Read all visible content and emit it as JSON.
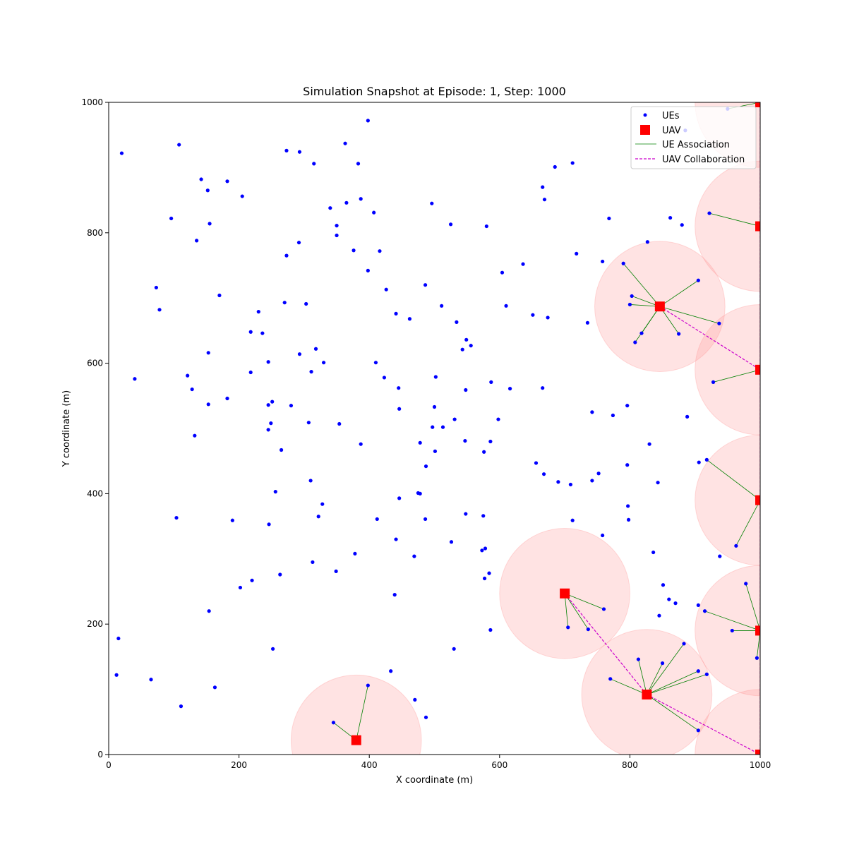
{
  "chart_data": {
    "type": "scatter",
    "title": "Simulation Snapshot at Episode: 1, Step: 1000",
    "xlabel": "X coordinate (m)",
    "ylabel": "Y coordinate (m)",
    "xlim": [
      0,
      1000
    ],
    "ylim": [
      0,
      1000
    ],
    "xticks": [
      0,
      200,
      400,
      600,
      800,
      1000
    ],
    "yticks": [
      0,
      200,
      400,
      600,
      800,
      1000
    ],
    "xtick_labels": [
      "0",
      "200",
      "400",
      "600",
      "800",
      "1000"
    ],
    "ytick_labels": [
      "0",
      "200",
      "400",
      "600",
      "800",
      "1000"
    ],
    "grid": false,
    "legend_position": "top-right",
    "legend": [
      {
        "label": "UEs",
        "marker": "point"
      },
      {
        "label": "UAV",
        "marker": "square"
      },
      {
        "label": "UE Association",
        "marker": "line"
      },
      {
        "label": "UAV Collaboration",
        "marker": "dashed-line"
      }
    ],
    "colors": {
      "ue": "#0000ff",
      "uav": "#ff0000",
      "association": "#008000",
      "collaboration": "#cc00cc",
      "coverage": "#ff9a9a"
    },
    "coverage_radius": 100,
    "uavs": [
      [
        380,
        22
      ],
      [
        700,
        247
      ],
      [
        826,
        92
      ],
      [
        846,
        687
      ],
      [
        1000,
        0
      ],
      [
        1000,
        190
      ],
      [
        1000,
        390
      ],
      [
        1000,
        590
      ],
      [
        1000,
        810
      ],
      [
        1000,
        1000
      ]
    ],
    "collaborations": [
      [
        1,
        2
      ],
      [
        2,
        4
      ],
      [
        3,
        7
      ],
      [
        4,
        5
      ],
      [
        5,
        6
      ],
      [
        6,
        7
      ],
      [
        7,
        8
      ],
      [
        8,
        9
      ]
    ],
    "associations": [
      {
        "uav": 0,
        "ues": [
          [
            345,
            49
          ],
          [
            398,
            106
          ]
        ]
      },
      {
        "uav": 1,
        "ues": [
          [
            705,
            195
          ],
          [
            736,
            192
          ],
          [
            760,
            223
          ]
        ]
      },
      {
        "uav": 2,
        "ues": [
          [
            770,
            116
          ],
          [
            813,
            146
          ],
          [
            850,
            140
          ],
          [
            883,
            170
          ],
          [
            905,
            128
          ],
          [
            918,
            123
          ],
          [
            905,
            37
          ]
        ]
      },
      {
        "uav": 3,
        "ues": [
          [
            790,
            753
          ],
          [
            803,
            703
          ],
          [
            800,
            690
          ],
          [
            808,
            632
          ],
          [
            818,
            646
          ],
          [
            875,
            645
          ],
          [
            905,
            727
          ],
          [
            937,
            661
          ]
        ]
      },
      {
        "uav": 5,
        "ues": [
          [
            978,
            262
          ],
          [
            915,
            220
          ],
          [
            957,
            190
          ],
          [
            995,
            148
          ]
        ]
      },
      {
        "uav": 6,
        "ues": [
          [
            918,
            452
          ],
          [
            963,
            320
          ]
        ]
      },
      {
        "uav": 7,
        "ues": [
          [
            928,
            571
          ]
        ]
      },
      {
        "uav": 8,
        "ues": [
          [
            922,
            830
          ]
        ]
      },
      {
        "uav": 9,
        "ues": [
          [
            950,
            990
          ]
        ]
      }
    ],
    "ues": [
      [
        20,
        922
      ],
      [
        108,
        935
      ],
      [
        142,
        882
      ],
      [
        152,
        865
      ],
      [
        182,
        879
      ],
      [
        205,
        856
      ],
      [
        96,
        822
      ],
      [
        135,
        788
      ],
      [
        155,
        814
      ],
      [
        273,
        926
      ],
      [
        293,
        924
      ],
      [
        315,
        906
      ],
      [
        363,
        937
      ],
      [
        383,
        906
      ],
      [
        398,
        972
      ],
      [
        340,
        838
      ],
      [
        365,
        846
      ],
      [
        387,
        852
      ],
      [
        407,
        831
      ],
      [
        350,
        811
      ],
      [
        350,
        796
      ],
      [
        292,
        785
      ],
      [
        273,
        765
      ],
      [
        376,
        773
      ],
      [
        416,
        772
      ],
      [
        398,
        742
      ],
      [
        73,
        716
      ],
      [
        78,
        682
      ],
      [
        170,
        704
      ],
      [
        270,
        693
      ],
      [
        303,
        691
      ],
      [
        230,
        679
      ],
      [
        218,
        648
      ],
      [
        236,
        646
      ],
      [
        153,
        616
      ],
      [
        293,
        614
      ],
      [
        318,
        622
      ],
      [
        330,
        601
      ],
      [
        245,
        602
      ],
      [
        218,
        586
      ],
      [
        311,
        587
      ],
      [
        40,
        576
      ],
      [
        121,
        581
      ],
      [
        128,
        560
      ],
      [
        182,
        546
      ],
      [
        153,
        537
      ],
      [
        245,
        536
      ],
      [
        251,
        541
      ],
      [
        280,
        535
      ],
      [
        249,
        508
      ],
      [
        245,
        498
      ],
      [
        307,
        509
      ],
      [
        354,
        507
      ],
      [
        132,
        489
      ],
      [
        265,
        467
      ],
      [
        310,
        420
      ],
      [
        256,
        403
      ],
      [
        328,
        384
      ],
      [
        322,
        365
      ],
      [
        104,
        363
      ],
      [
        190,
        359
      ],
      [
        246,
        353
      ],
      [
        202,
        256
      ],
      [
        220,
        267
      ],
      [
        263,
        276
      ],
      [
        313,
        295
      ],
      [
        349,
        281
      ],
      [
        378,
        308
      ],
      [
        154,
        220
      ],
      [
        252,
        162
      ],
      [
        15,
        178
      ],
      [
        12,
        122
      ],
      [
        65,
        115
      ],
      [
        163,
        103
      ],
      [
        111,
        74
      ],
      [
        496,
        845
      ],
      [
        525,
        813
      ],
      [
        580,
        810
      ],
      [
        486,
        720
      ],
      [
        426,
        713
      ],
      [
        441,
        676
      ],
      [
        462,
        668
      ],
      [
        511,
        688
      ],
      [
        534,
        663
      ],
      [
        549,
        636
      ],
      [
        556,
        627
      ],
      [
        543,
        621
      ],
      [
        410,
        601
      ],
      [
        423,
        578
      ],
      [
        445,
        562
      ],
      [
        502,
        579
      ],
      [
        548,
        559
      ],
      [
        587,
        571
      ],
      [
        616,
        561
      ],
      [
        446,
        530
      ],
      [
        500,
        533
      ],
      [
        497,
        502
      ],
      [
        513,
        502
      ],
      [
        531,
        514
      ],
      [
        598,
        514
      ],
      [
        478,
        478
      ],
      [
        547,
        481
      ],
      [
        586,
        480
      ],
      [
        501,
        465
      ],
      [
        387,
        476
      ],
      [
        487,
        442
      ],
      [
        576,
        464
      ],
      [
        475,
        401
      ],
      [
        478,
        400
      ],
      [
        446,
        393
      ],
      [
        412,
        361
      ],
      [
        441,
        330
      ],
      [
        486,
        361
      ],
      [
        548,
        369
      ],
      [
        575,
        366
      ],
      [
        526,
        326
      ],
      [
        573,
        313
      ],
      [
        578,
        316
      ],
      [
        469,
        304
      ],
      [
        584,
        278
      ],
      [
        577,
        270
      ],
      [
        439,
        245
      ],
      [
        530,
        162
      ],
      [
        586,
        191
      ],
      [
        433,
        128
      ],
      [
        470,
        84
      ],
      [
        487,
        57
      ],
      [
        666,
        870
      ],
      [
        685,
        901
      ],
      [
        712,
        907
      ],
      [
        669,
        851
      ],
      [
        768,
        822
      ],
      [
        827,
        786
      ],
      [
        718,
        768
      ],
      [
        758,
        756
      ],
      [
        604,
        739
      ],
      [
        636,
        752
      ],
      [
        610,
        688
      ],
      [
        651,
        674
      ],
      [
        674,
        670
      ],
      [
        735,
        662
      ],
      [
        862,
        823
      ],
      [
        880,
        812
      ],
      [
        666,
        562
      ],
      [
        796,
        535
      ],
      [
        742,
        525
      ],
      [
        774,
        520
      ],
      [
        888,
        518
      ],
      [
        830,
        476
      ],
      [
        656,
        447
      ],
      [
        668,
        430
      ],
      [
        690,
        418
      ],
      [
        709,
        414
      ],
      [
        742,
        420
      ],
      [
        752,
        431
      ],
      [
        796,
        444
      ],
      [
        843,
        417
      ],
      [
        906,
        448
      ],
      [
        712,
        359
      ],
      [
        758,
        336
      ],
      [
        797,
        381
      ],
      [
        798,
        360
      ],
      [
        836,
        310
      ],
      [
        938,
        304
      ],
      [
        851,
        260
      ],
      [
        860,
        238
      ],
      [
        870,
        232
      ],
      [
        905,
        229
      ],
      [
        845,
        213
      ],
      [
        885,
        957
      ]
    ]
  }
}
